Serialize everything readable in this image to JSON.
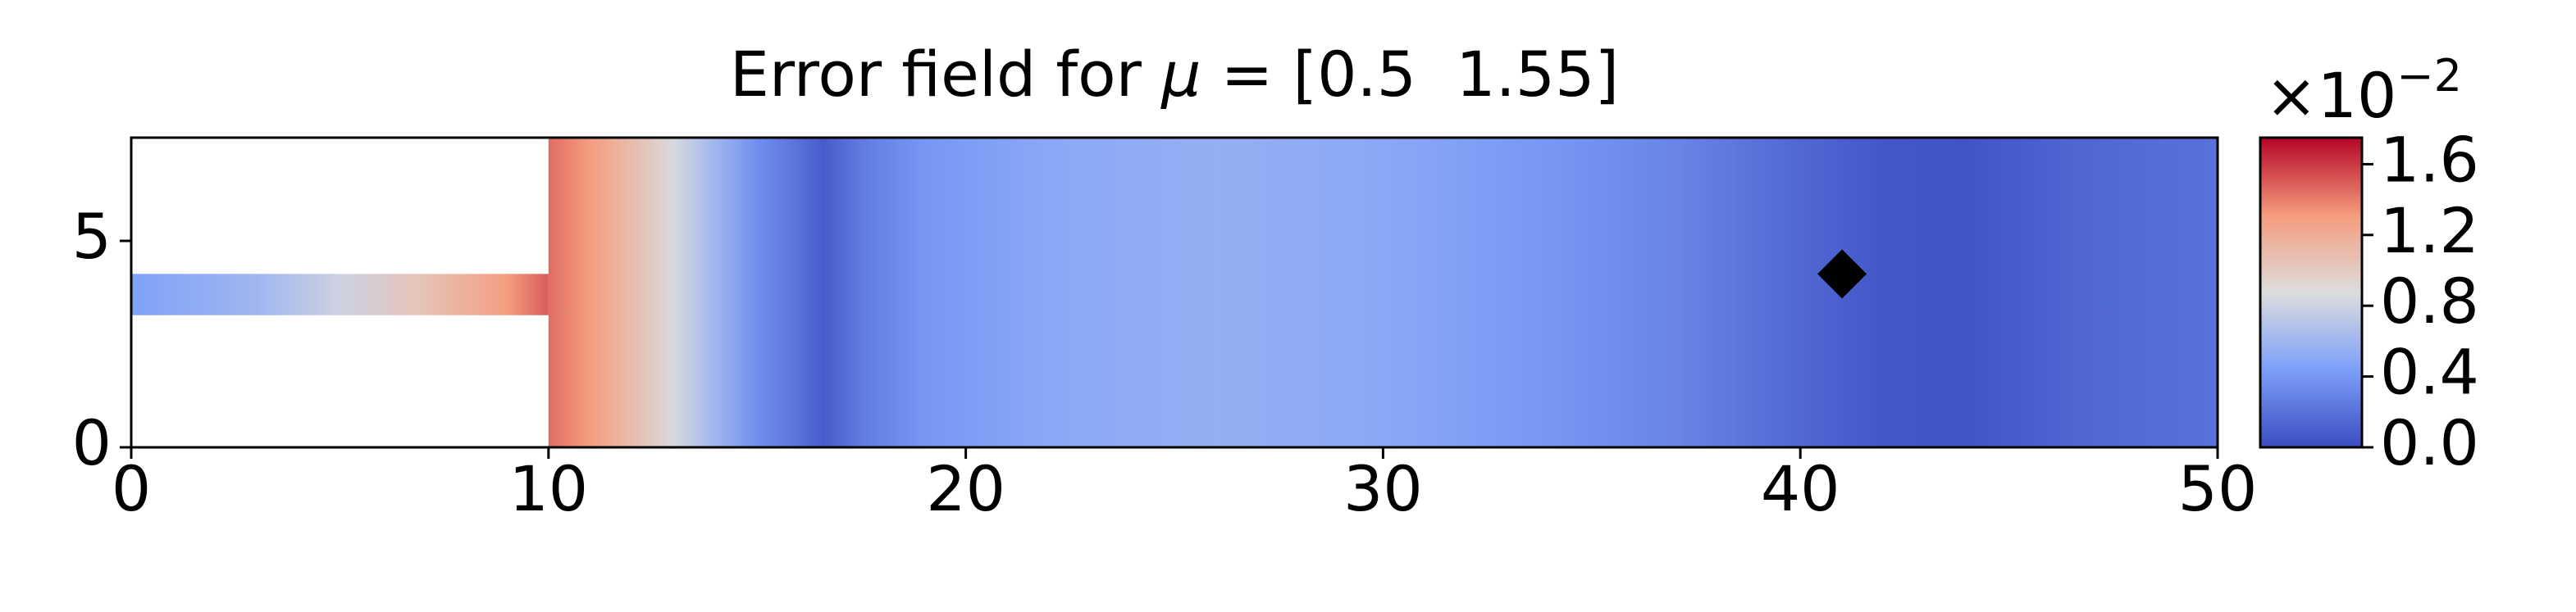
{
  "chart_data": {
    "type": "field",
    "title": {
      "before": "Error field for ",
      "symbol": "μ",
      "after": " = [0.5  1.55]"
    },
    "xlim": [
      0,
      50
    ],
    "xticks": [
      0,
      10,
      20,
      30,
      40,
      50
    ],
    "ylim": [
      0,
      7.5
    ],
    "yticks": [
      0,
      5
    ],
    "colormap": "coolwarm",
    "clim": [
      0,
      1.75
    ],
    "cticks": [
      {
        "value": 0,
        "label": "0.0"
      },
      0.4,
      0.8,
      1.2,
      1.6
    ],
    "colorbar_offset": {
      "base": "×10",
      "exponent": "−2"
    },
    "inlet": {
      "xlim": [
        0,
        10
      ],
      "ylim": [
        3.2,
        4.2
      ],
      "x": [
        0,
        3,
        5,
        7,
        9,
        10
      ],
      "values": [
        0.45,
        0.6,
        0.8,
        1.05,
        1.3,
        1.5
      ]
    },
    "main": {
      "xlim": [
        10,
        50
      ],
      "ylim": [
        0,
        7.5
      ],
      "x": [
        10,
        11,
        12,
        13,
        14,
        15,
        16,
        16.6,
        17.5,
        19,
        22,
        26,
        30,
        34,
        37,
        40,
        42,
        44,
        47,
        50
      ],
      "values": [
        1.45,
        1.3,
        1.1,
        0.85,
        0.6,
        0.35,
        0.2,
        0.08,
        0.25,
        0.4,
        0.5,
        0.55,
        0.5,
        0.4,
        0.3,
        0.15,
        0.06,
        0.05,
        0.15,
        0.2
      ]
    },
    "marker": {
      "x": 41,
      "y": 4.2,
      "color": "#000000"
    }
  }
}
